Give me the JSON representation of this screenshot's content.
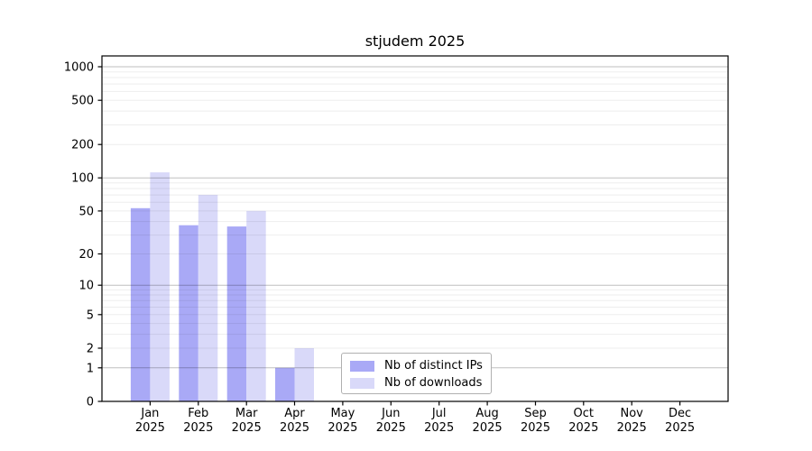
{
  "chart_data": {
    "type": "bar",
    "title": "stjudem 2025",
    "categories": [
      "Jan 2025",
      "Feb 2025",
      "Mar 2025",
      "Apr 2025",
      "May 2025",
      "Jun 2025",
      "Jul 2025",
      "Aug 2025",
      "Sep 2025",
      "Oct 2025",
      "Nov 2025",
      "Dec 2025"
    ],
    "series": [
      {
        "name": "Nb of distinct IPs",
        "color": "#a9a9f6",
        "values": [
          53,
          37,
          36,
          1,
          0,
          0,
          0,
          0,
          0,
          0,
          0,
          0
        ]
      },
      {
        "name": "Nb of downloads",
        "color": "#d9d9f9",
        "values": [
          112,
          70,
          50,
          2,
          0,
          0,
          0,
          0,
          0,
          0,
          0,
          0
        ]
      }
    ],
    "yscale": "log1p",
    "yticks": [
      0,
      1,
      2,
      5,
      10,
      20,
      50,
      100,
      200,
      500,
      1000
    ],
    "ylim": [
      0,
      1250
    ],
    "grid": "horizontal, major at powers of 10, faint minors at 2-9 multiples",
    "legend_position": "inside lower center",
    "colors": {
      "axis": "#000000",
      "major_grid": "rgba(0,0,0,0.25)",
      "minor_grid": "rgba(0,0,0,0.07)",
      "background": "#ffffff"
    }
  }
}
